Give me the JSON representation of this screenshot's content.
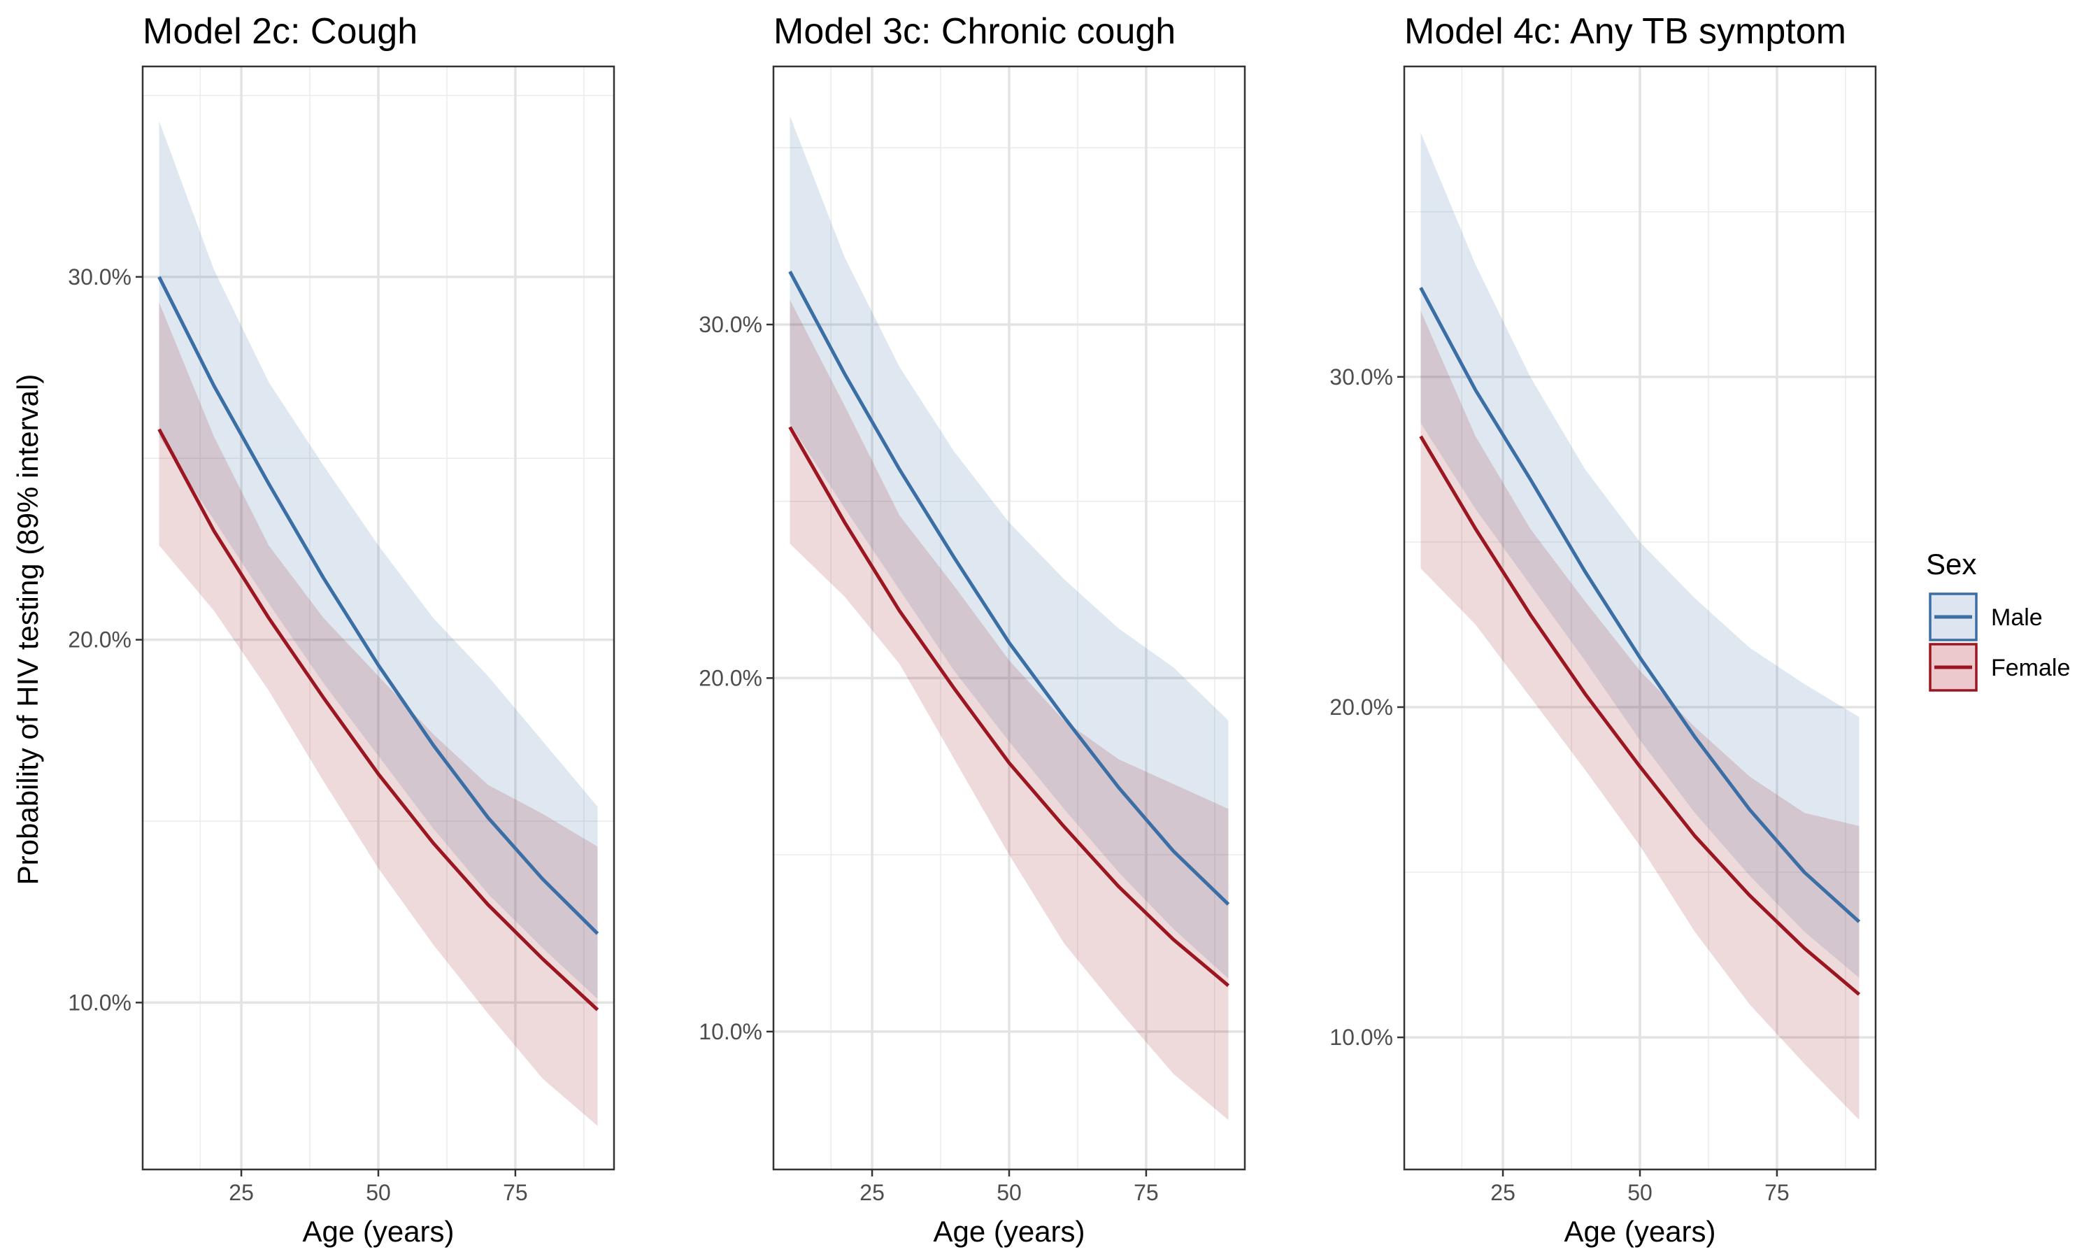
{
  "figure": {
    "ylabel": "Probability of HIV testing (89% interval)",
    "legend": {
      "title": "Sex",
      "entries": [
        {
          "label": "Male",
          "color": "#3a6ea5",
          "fill": "#dce5f0"
        },
        {
          "label": "Female",
          "color": "#9b1620",
          "fill": "#ecc9cc"
        }
      ],
      "position": "right"
    }
  },
  "chart_data": [
    {
      "type": "line",
      "title": "Model 2c: Cough",
      "xlabel": "Age (years)",
      "ylabel": "Probability of HIV testing (89% interval)",
      "xlim": [
        7,
        93
      ],
      "ylim": [
        5.4,
        35.8
      ],
      "xticks": [
        25,
        50,
        75
      ],
      "xtick_labels": [
        "25",
        "50",
        "75"
      ],
      "yticks": [
        10,
        20,
        30
      ],
      "ytick_labels": [
        "10.0%",
        "20.0%",
        "30.0%"
      ],
      "grid": true,
      "x": [
        10,
        20,
        30,
        40,
        50,
        60,
        70,
        80,
        90
      ],
      "series": [
        {
          "name": "Male",
          "mean": [
            30.0,
            27.0,
            24.3,
            21.7,
            19.3,
            17.1,
            15.1,
            13.4,
            11.9
          ],
          "lower": [
            25.6,
            23.3,
            21.0,
            18.8,
            16.8,
            14.8,
            13.0,
            11.5,
            10.1
          ],
          "upper": [
            34.3,
            30.2,
            27.1,
            24.8,
            22.6,
            20.6,
            19.0,
            17.2,
            15.4
          ]
        },
        {
          "name": "Female",
          "mean": [
            25.8,
            23.0,
            20.6,
            18.4,
            16.3,
            14.4,
            12.7,
            11.2,
            9.8
          ],
          "lower": [
            22.6,
            20.8,
            18.6,
            16.1,
            13.7,
            11.6,
            9.7,
            7.9,
            6.6
          ],
          "upper": [
            29.3,
            25.6,
            22.6,
            20.6,
            19.0,
            17.4,
            16.0,
            15.2,
            14.3
          ]
        }
      ]
    },
    {
      "type": "line",
      "title": "Model 3c: Chronic cough",
      "xlabel": "Age (years)",
      "ylabel": "",
      "xlim": [
        7,
        93
      ],
      "ylim": [
        6.1,
        37.3
      ],
      "xticks": [
        25,
        50,
        75
      ],
      "xtick_labels": [
        "25",
        "50",
        "75"
      ],
      "yticks": [
        10,
        20,
        30
      ],
      "ytick_labels": [
        "10.0%",
        "20.0%",
        "30.0%"
      ],
      "grid": true,
      "x": [
        10,
        20,
        30,
        40,
        50,
        60,
        70,
        80,
        90
      ],
      "series": [
        {
          "name": "Male",
          "mean": [
            31.5,
            28.6,
            25.9,
            23.4,
            21.0,
            18.9,
            16.9,
            15.1,
            13.6
          ],
          "lower": [
            27.2,
            24.8,
            22.5,
            20.2,
            18.2,
            16.3,
            14.5,
            12.9,
            11.5
          ],
          "upper": [
            35.9,
            31.9,
            28.8,
            26.4,
            24.4,
            22.8,
            21.4,
            20.3,
            18.8
          ]
        },
        {
          "name": "Female",
          "mean": [
            27.1,
            24.4,
            21.9,
            19.7,
            17.6,
            15.8,
            14.1,
            12.6,
            11.3
          ],
          "lower": [
            23.8,
            22.3,
            20.4,
            17.7,
            15.0,
            12.5,
            10.6,
            8.8,
            7.5
          ],
          "upper": [
            30.7,
            27.7,
            24.6,
            22.6,
            20.5,
            18.8,
            17.7,
            17.0,
            16.3
          ]
        }
      ]
    },
    {
      "type": "line",
      "title": "Model 4c: Any TB symptom",
      "xlabel": "Age (years)",
      "ylabel": "",
      "xlim": [
        7,
        93
      ],
      "ylim": [
        6.0,
        39.4
      ],
      "xticks": [
        25,
        50,
        75
      ],
      "xtick_labels": [
        "25",
        "50",
        "75"
      ],
      "yticks": [
        10,
        20,
        30
      ],
      "ytick_labels": [
        "10.0%",
        "20.0%",
        "30.0%"
      ],
      "grid": true,
      "x": [
        10,
        20,
        30,
        40,
        50,
        60,
        70,
        80,
        90
      ],
      "series": [
        {
          "name": "Male",
          "mean": [
            32.7,
            29.6,
            26.9,
            24.1,
            21.5,
            19.1,
            16.9,
            15.0,
            13.5
          ],
          "lower": [
            28.6,
            26.0,
            23.7,
            21.4,
            19.0,
            16.8,
            14.9,
            13.2,
            11.8
          ],
          "upper": [
            37.4,
            33.4,
            30.0,
            27.2,
            25.0,
            23.3,
            21.8,
            20.7,
            19.7
          ]
        },
        {
          "name": "Female",
          "mean": [
            28.2,
            25.4,
            22.8,
            20.4,
            18.2,
            16.1,
            14.3,
            12.7,
            11.3
          ],
          "lower": [
            24.2,
            22.5,
            20.3,
            18.1,
            15.8,
            13.2,
            11.0,
            9.2,
            7.5
          ],
          "upper": [
            32.0,
            28.2,
            25.4,
            23.2,
            21.1,
            19.4,
            17.9,
            16.8,
            16.4
          ]
        }
      ]
    }
  ]
}
